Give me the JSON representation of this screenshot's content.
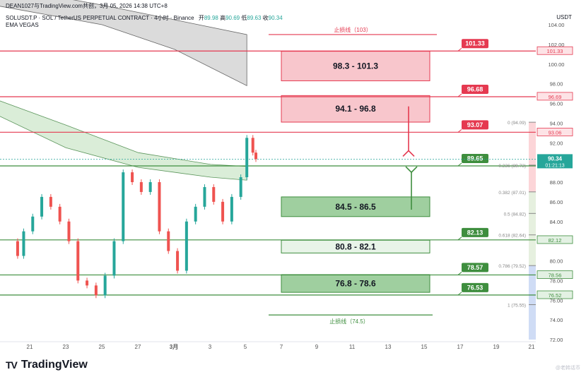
{
  "header": {
    "line1": "DEAN1027与TradingView.com共创，3月 05, 2026 14:38 UTC+8",
    "symbol_line": "SOLUSDT.P · SOL / TetherUS PERPETUAL CONTRACT · 4小时 · Binance",
    "open_label": "开",
    "open_value": "89.98",
    "high_label": "高",
    "high_value": "90.69",
    "low_label": "低",
    "low_value": "89.63",
    "close_label": "收",
    "close_value": "90.34",
    "indicator": "EMA VEGAS",
    "currency": "USDT"
  },
  "brand": {
    "name": "TradingView",
    "logo": "TV"
  },
  "watermark": "@老韩话币",
  "colors": {
    "red": "#e53950",
    "green": "#3e8e3e",
    "up": "#26a69a",
    "down": "#ef5350",
    "red_zone": "#f8c6cc",
    "green_zone": "#9fcf9f",
    "fib_zone_red": "#fcd5d8",
    "fib_zone_blue": "#cfdcf5"
  },
  "chart_data": {
    "type": "line",
    "ylim": [
      72,
      104
    ],
    "y_ticks": [
      72,
      74,
      76,
      78,
      80,
      82,
      84,
      86,
      88,
      90,
      92,
      94,
      96,
      98,
      100,
      102,
      104
    ],
    "x_ticks": [
      "21",
      "23",
      "25",
      "27",
      "3月",
      "3",
      "5",
      "7",
      "9",
      "11",
      "13",
      "15",
      "17",
      "19",
      "21"
    ],
    "price_series": [
      {
        "x": "02-19 20:00",
        "close": 82.0
      },
      {
        "x": "02-20 08:00",
        "close": 80.5
      },
      {
        "x": "02-20 16:00",
        "close": 83.0
      },
      {
        "x": "02-21 04:00",
        "close": 84.5
      },
      {
        "x": "02-21 16:00",
        "close": 86.5
      },
      {
        "x": "02-22 04:00",
        "close": 85.5
      },
      {
        "x": "02-22 16:00",
        "close": 84.0
      },
      {
        "x": "02-23 04:00",
        "close": 82.0
      },
      {
        "x": "02-23 16:00",
        "close": 78.0
      },
      {
        "x": "02-24 04:00",
        "close": 77.5
      },
      {
        "x": "02-24 16:00",
        "close": 76.5
      },
      {
        "x": "02-25 04:00",
        "close": 78.5
      },
      {
        "x": "02-25 16:00",
        "close": 82.0
      },
      {
        "x": "02-26 04:00",
        "close": 89.0
      },
      {
        "x": "02-26 16:00",
        "close": 88.0
      },
      {
        "x": "02-27 04:00",
        "close": 87.0
      },
      {
        "x": "02-27 16:00",
        "close": 88.0
      },
      {
        "x": "02-28 04:00",
        "close": 83.0
      },
      {
        "x": "02-28 16:00",
        "close": 81.0
      },
      {
        "x": "03-01 04:00",
        "close": 79.0
      },
      {
        "x": "03-01 16:00",
        "close": 84.0
      },
      {
        "x": "03-02 04:00",
        "close": 85.5
      },
      {
        "x": "03-02 16:00",
        "close": 87.5
      },
      {
        "x": "03-03 04:00",
        "close": 86.0
      },
      {
        "x": "03-03 16:00",
        "close": 84.0
      },
      {
        "x": "03-04 04:00",
        "close": 86.5
      },
      {
        "x": "03-04 16:00",
        "close": 88.5
      },
      {
        "x": "03-05 00:00",
        "close": 92.5
      },
      {
        "x": "03-05 08:00",
        "close": 91.0
      },
      {
        "x": "03-05 12:00",
        "close": 90.34
      }
    ],
    "ema_upper_band": {
      "top": [
        [
          "02-19",
          108
        ],
        [
          "02-25",
          106
        ],
        [
          "03-01",
          104.5
        ],
        [
          "03-05",
          103
        ]
      ],
      "bottom": [
        [
          "02-19",
          106
        ],
        [
          "02-25",
          104
        ],
        [
          "03-01",
          101.5
        ],
        [
          "03-05",
          97.8
        ]
      ]
    },
    "ema_lower_band": {
      "top": [
        [
          "02-19",
          96.5
        ],
        [
          "02-23",
          93.8
        ],
        [
          "02-27",
          91.0
        ],
        [
          "03-03",
          89.8
        ],
        [
          "03-05",
          89.6
        ]
      ],
      "bottom": [
        [
          "02-19",
          95.0
        ],
        [
          "02-23",
          91.5
        ],
        [
          "02-27",
          89.5
        ],
        [
          "03-03",
          88.5
        ],
        [
          "03-05",
          88.2
        ]
      ]
    },
    "horizontal_levels": [
      {
        "value": 101.33,
        "label": "101.33",
        "color": "red"
      },
      {
        "value": 96.68,
        "label": "96.68",
        "color": "red"
      },
      {
        "value": 93.07,
        "label": "93.07",
        "color": "red"
      },
      {
        "value": 89.65,
        "label": "89.65",
        "color": "green"
      },
      {
        "value": 82.13,
        "label": "82.13",
        "color": "green"
      },
      {
        "value": 78.57,
        "label": "78.57",
        "color": "green"
      },
      {
        "value": 76.53,
        "label": "76.53",
        "color": "green"
      }
    ],
    "stop_loss": {
      "value": 103,
      "label": "止损线（103）"
    },
    "stop_profit": {
      "value": 74.5,
      "label": "止损线（74.5）"
    },
    "zones": [
      {
        "low": 98.3,
        "high": 101.3,
        "label": "98.3 - 101.3",
        "color": "red"
      },
      {
        "low": 94.1,
        "high": 96.8,
        "label": "94.1 - 96.8",
        "color": "red"
      },
      {
        "low": 84.5,
        "high": 86.5,
        "label": "84.5 - 86.5",
        "color": "green"
      },
      {
        "low": 80.8,
        "high": 82.1,
        "label": "80.8 - 82.1",
        "color": "green_light"
      },
      {
        "low": 76.8,
        "high": 78.6,
        "label": "76.8 - 78.6",
        "color": "green"
      }
    ],
    "fib_levels": [
      {
        "ratio": "0",
        "price": "94.09",
        "value": 94.09
      },
      {
        "ratio": "0.236",
        "price": "89.73",
        "value": 89.73
      },
      {
        "ratio": "0.382",
        "price": "87.01",
        "value": 87.01
      },
      {
        "ratio": "0.5",
        "price": "84.82",
        "value": 84.82
      },
      {
        "ratio": "0.618",
        "price": "82.64",
        "value": 82.64
      },
      {
        "ratio": "0.786",
        "price": "79.52",
        "value": 79.52
      },
      {
        "ratio": "1",
        "price": "75.55",
        "value": 75.55
      }
    ],
    "right_axis_labels": [
      {
        "value": 101.33,
        "text": "101.33",
        "color": "red"
      },
      {
        "value": 96.69,
        "text": "96.69",
        "color": "red"
      },
      {
        "value": 93.06,
        "text": "93.06",
        "color": "red"
      },
      {
        "value": 82.12,
        "text": "82.12",
        "color": "green"
      },
      {
        "value": 78.56,
        "text": "78.56",
        "color": "green"
      },
      {
        "value": 76.52,
        "text": "76.52",
        "color": "green"
      }
    ],
    "last_price": {
      "value": 90.34,
      "text": "90.34",
      "countdown": "01:21:13"
    },
    "arrows": [
      {
        "direction": "down",
        "from": 95.7,
        "to": 91.2,
        "color": "red"
      },
      {
        "direction": "up",
        "from": 85.2,
        "to": 89.0,
        "color": "green"
      }
    ]
  }
}
